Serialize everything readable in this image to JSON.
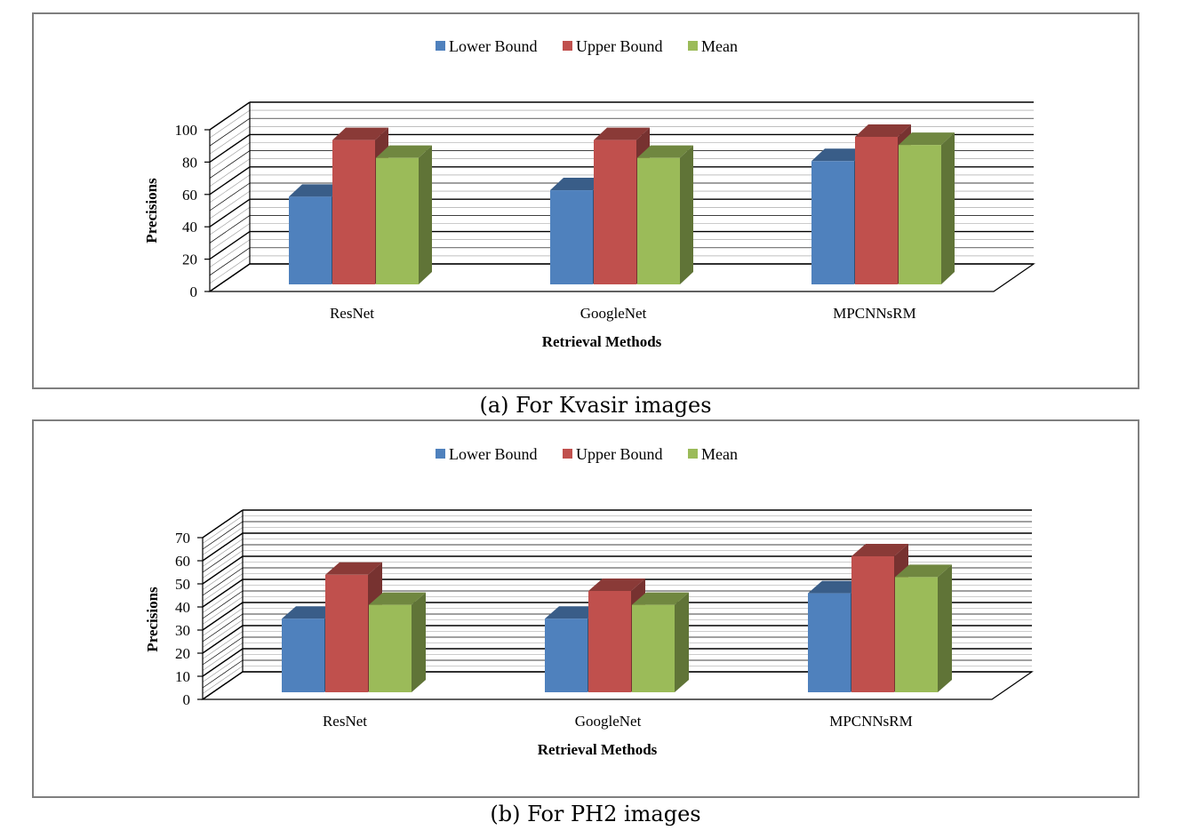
{
  "chart_data": [
    {
      "type": "bar",
      "caption": "(a) For Kvasir images",
      "categories": [
        "ResNet",
        "GoogleNet",
        "MPCNNsRM"
      ],
      "series": [
        {
          "name": "Lower Bound",
          "values": [
            63,
            67,
            85
          ]
        },
        {
          "name": "Upper Bound",
          "values": [
            98,
            98,
            100
          ]
        },
        {
          "name": "Mean",
          "values": [
            87,
            87,
            95
          ]
        }
      ],
      "xlabel": "Retrieval Methods",
      "ylabel": "Precisions",
      "ylim": [
        0,
        100
      ],
      "yticks": [
        "0",
        "20",
        "40",
        "60",
        "80",
        "100"
      ],
      "legend": "top-center",
      "colors": {
        "Lower Bound": "#4f81bd",
        "Upper Bound": "#c0504d",
        "Mean": "#9bbb59"
      }
    },
    {
      "type": "bar",
      "caption": "(b) For PH2 images",
      "categories": [
        "ResNet",
        "GoogleNet",
        "MPCNNsRM"
      ],
      "series": [
        {
          "name": "Lower Bound",
          "values": [
            38,
            38,
            49
          ]
        },
        {
          "name": "Upper Bound",
          "values": [
            57,
            50,
            65
          ]
        },
        {
          "name": "Mean",
          "values": [
            44,
            44,
            56
          ]
        }
      ],
      "xlabel": "Retrieval Methods",
      "ylabel": "Precisions",
      "ylim": [
        0,
        70
      ],
      "yticks": [
        "0",
        "10",
        "20",
        "30",
        "40",
        "50",
        "60",
        "70"
      ],
      "legend": "top-center",
      "colors": {
        "Lower Bound": "#4f81bd",
        "Upper Bound": "#c0504d",
        "Mean": "#9bbb59"
      }
    }
  ]
}
